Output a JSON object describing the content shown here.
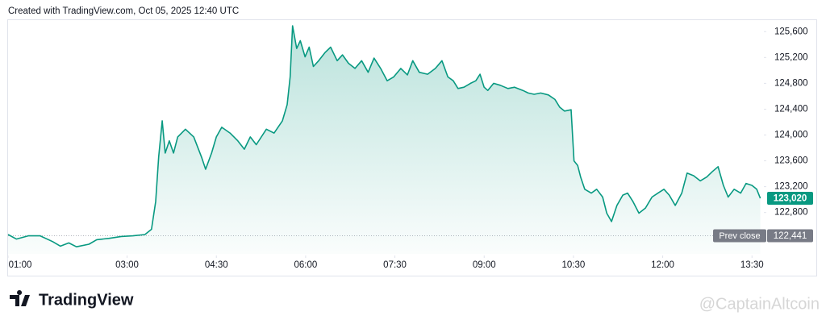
{
  "header": "Created with TradingView.com, Oct 05, 2025 12:40 UTC",
  "chart_data": {
    "type": "area",
    "color": "#089981",
    "x": [
      1.0,
      1.14,
      1.34,
      1.54,
      1.75,
      1.88,
      2.02,
      2.15,
      2.36,
      2.49,
      2.69,
      2.9,
      3.1,
      3.3,
      3.41,
      3.48,
      3.53,
      3.59,
      3.64,
      3.71,
      3.78,
      3.85,
      3.98,
      4.12,
      4.25,
      4.32,
      4.42,
      4.5,
      4.59,
      4.73,
      4.86,
      4.97,
      5.07,
      5.17,
      5.34,
      5.47,
      5.61,
      5.69,
      5.74,
      5.78,
      5.85,
      5.91,
      5.99,
      6.06,
      6.13,
      6.22,
      6.33,
      6.42,
      6.53,
      6.62,
      6.72,
      6.83,
      6.94,
      7.05,
      7.15,
      7.26,
      7.37,
      7.48,
      7.6,
      7.71,
      7.8,
      7.91,
      8.05,
      8.18,
      8.29,
      8.39,
      8.48,
      8.56,
      8.66,
      8.77,
      8.86,
      8.93,
      9.0,
      9.06,
      9.16,
      9.27,
      9.4,
      9.51,
      9.65,
      9.74,
      9.84,
      9.95,
      10.08,
      10.19,
      10.27,
      10.35,
      10.46,
      10.51,
      10.57,
      10.62,
      10.69,
      10.8,
      10.89,
      10.99,
      11.06,
      11.14,
      11.23,
      11.33,
      11.41,
      11.5,
      11.6,
      11.71,
      11.82,
      11.92,
      12.02,
      12.11,
      12.21,
      12.32,
      12.41,
      12.52,
      12.63,
      12.74,
      12.83,
      12.93,
      13.02,
      13.1,
      13.2,
      13.31,
      13.4,
      13.5,
      13.58,
      13.64
    ],
    "values": [
      122460,
      122390,
      122440,
      122440,
      122350,
      122280,
      122330,
      122270,
      122310,
      122380,
      122400,
      122430,
      122440,
      122460,
      122540,
      122970,
      123660,
      124220,
      123720,
      123910,
      123720,
      123970,
      124090,
      123970,
      123660,
      123470,
      123720,
      123970,
      124120,
      124030,
      123910,
      123780,
      123970,
      123850,
      124090,
      124030,
      124220,
      124470,
      124900,
      125690,
      125340,
      125460,
      125210,
      125360,
      125060,
      125150,
      125280,
      125360,
      125150,
      125240,
      125110,
      125030,
      125150,
      124970,
      125190,
      125030,
      124840,
      124900,
      125030,
      124930,
      125150,
      124970,
      124940,
      125030,
      125150,
      124900,
      124840,
      124720,
      124740,
      124800,
      124840,
      124940,
      124740,
      124690,
      124800,
      124770,
      124720,
      124740,
      124690,
      124650,
      124630,
      124650,
      124620,
      124550,
      124430,
      124370,
      124390,
      123600,
      123530,
      123350,
      123160,
      123100,
      123160,
      123040,
      122790,
      122660,
      122910,
      123070,
      123100,
      122970,
      122790,
      122870,
      123040,
      123100,
      123160,
      123070,
      122910,
      123100,
      123410,
      123370,
      123290,
      123350,
      123430,
      123510,
      123220,
      123040,
      123160,
      123100,
      123250,
      123220,
      123160,
      123020
    ],
    "xlim": [
      1,
      13.7
    ],
    "xticks": [
      {
        "value": 1,
        "label": "01:00"
      },
      {
        "value": 3,
        "label": "03:00"
      },
      {
        "value": 4.5,
        "label": "04:30"
      },
      {
        "value": 6,
        "label": "06:00"
      },
      {
        "value": 7.5,
        "label": "07:30"
      },
      {
        "value": 9,
        "label": "09:00"
      },
      {
        "value": 10.5,
        "label": "10:30"
      },
      {
        "value": 12,
        "label": "12:00"
      },
      {
        "value": 13.5,
        "label": "13:30"
      }
    ],
    "ylim": [
      122160,
      125840
    ],
    "yticks": [
      {
        "value": 122800,
        "label": "122,800"
      },
      {
        "value": 123200,
        "label": "123,200"
      },
      {
        "value": 123600,
        "label": "123,600"
      },
      {
        "value": 124000,
        "label": "124,000"
      },
      {
        "value": 124400,
        "label": "124,400"
      },
      {
        "value": 124800,
        "label": "124,800"
      },
      {
        "value": 125200,
        "label": "125,200"
      },
      {
        "value": 125600,
        "label": "125,600"
      }
    ],
    "last_price": {
      "value": 123020,
      "label": "123,020"
    },
    "prev_close": {
      "name": "Prev close",
      "value": 122441,
      "label": "122,441"
    }
  },
  "footer": {
    "logo": "TradingView",
    "watermark": "@CaptainAltcoin"
  }
}
